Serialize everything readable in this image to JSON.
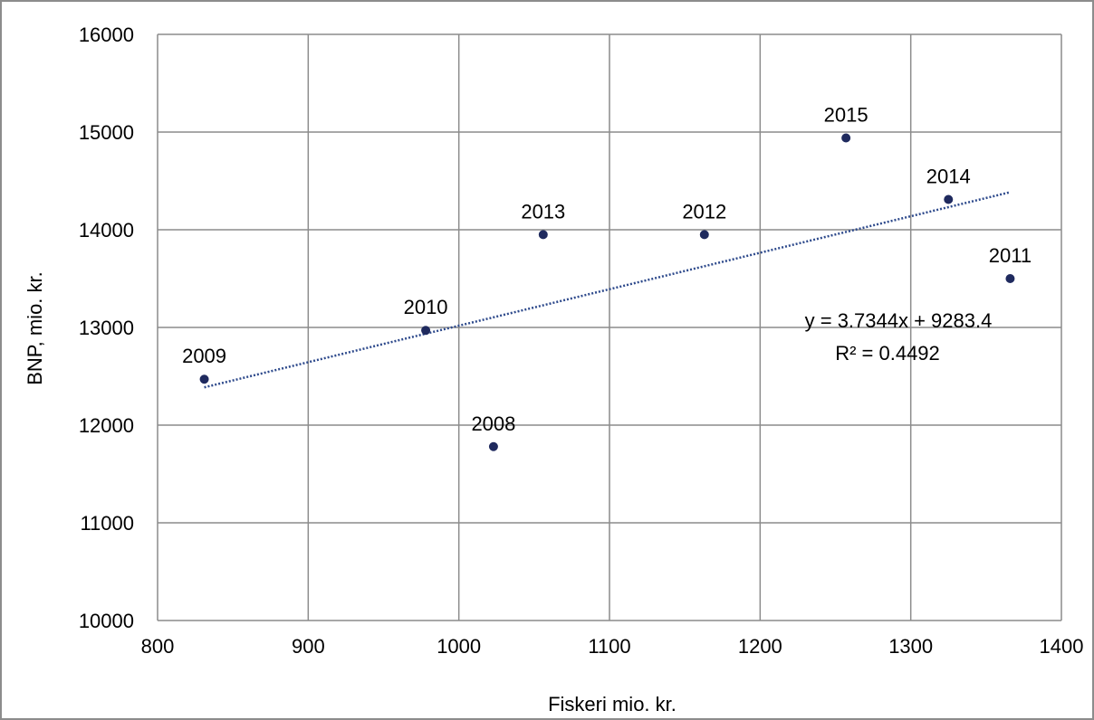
{
  "chart_data": {
    "type": "scatter",
    "xlabel": "Fiskeri mio. kr.",
    "ylabel": "BNP, mio. kr.",
    "xlim": [
      800,
      1400
    ],
    "ylim": [
      10000,
      16000
    ],
    "xticks": [
      "800",
      "900",
      "1000",
      "1100",
      "1200",
      "1300",
      "1400"
    ],
    "yticks": [
      "10000",
      "11000",
      "12000",
      "13000",
      "14000",
      "15000",
      "16000"
    ],
    "grid": true,
    "points": [
      {
        "label": "2008",
        "x": 1023,
        "y": 11780
      },
      {
        "label": "2009",
        "x": 831,
        "y": 12470
      },
      {
        "label": "2010",
        "x": 978,
        "y": 12970
      },
      {
        "label": "2011",
        "x": 1366,
        "y": 13500
      },
      {
        "label": "2012",
        "x": 1163,
        "y": 13950
      },
      {
        "label": "2013",
        "x": 1056,
        "y": 13950
      },
      {
        "label": "2014",
        "x": 1325,
        "y": 14310
      },
      {
        "label": "2015",
        "x": 1257,
        "y": 14940
      }
    ],
    "trendline": {
      "type": "linear",
      "slope": 3.7344,
      "intercept": 9283.4,
      "x_range": [
        831,
        1366
      ],
      "equation": "y = 3.7344x + 9283.4",
      "r_squared": "R² = 0.4492"
    },
    "colors": {
      "marker": "#1f2a5e",
      "trendline": "#2e4a8c",
      "grid": "#8c8c8c"
    }
  }
}
